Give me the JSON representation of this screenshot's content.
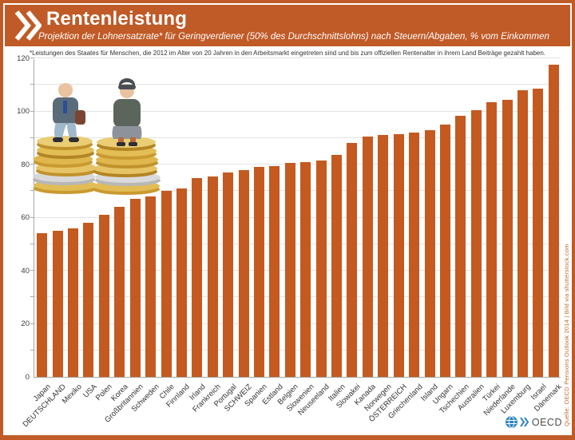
{
  "header": {
    "title": "Rentenleistung",
    "subtitle": "Projektion der Lohnersatzrate* für Geringverdiener (50% des Durchschnittslohns) nach Steuern/Abgaben, % vom Einkommen"
  },
  "footnote": "*Leistungen des Staates für Menschen, die 2012 im Alter von 20 Jahren in den Arbeitsmarkt eingetreten sind und bis zum offiziellen Rentenalter in ihrem Land Beiträge gezahlt haben.",
  "source_note": "Quelle: OECD Pensions Outlook 2014 | Bild via shutterstock.com",
  "branding": {
    "logo_text": "OECD"
  },
  "colors": {
    "accent_orange": "#C05A27",
    "bar_orange": "#C45A20",
    "grid_gray": "#E3E3E3",
    "axis_gray": "#A8A8A8",
    "label_dark": "#333333",
    "source_orange": "#BD6B33",
    "logo_blue": "#2E86C1"
  },
  "illustration_alt": "Zwei Rentner-Figuren sitzen auf Stapeln von Euro-Münzen",
  "chart_data": {
    "type": "bar",
    "title": "Rentenleistung",
    "subtitle": "Projektion der Lohnersatzrate für Geringverdiener (50% des Durchschnittslohns) nach Steuern/Abgaben, % vom Einkommen",
    "xlabel": "",
    "ylabel": "% vom Einkommen",
    "ylim": [
      0,
      120
    ],
    "ytick_label_step": 20,
    "ytick_grid_step": 10,
    "grid": true,
    "legend": false,
    "bar_color": "#C45A20",
    "categories": [
      "Japan",
      "DEUTSCHLAND",
      "Mexiko",
      "USA",
      "Polen",
      "Korea",
      "Großbritannien",
      "Schweden",
      "Chile",
      "Finnland",
      "Irland",
      "Frankreich",
      "Portugal",
      "SCHWEIZ",
      "Spanien",
      "Estland",
      "Belgien",
      "Slowenien",
      "Neuseeland",
      "Italien",
      "Slowakei",
      "Kanada",
      "Norwegen",
      "ÖSTERREICH",
      "Griechenland",
      "Island",
      "Ungarn",
      "Tschechien",
      "Australien",
      "Türkei",
      "Niederlande",
      "Luxemburg",
      "Israel",
      "Dänemark"
    ],
    "values": [
      54,
      55,
      56,
      58,
      61,
      64,
      67,
      68,
      70,
      71,
      75,
      75.5,
      77,
      78,
      79,
      79.5,
      80.5,
      81,
      81.5,
      83.5,
      88,
      90.5,
      91,
      91.5,
      92,
      93,
      95,
      98.5,
      100.5,
      103.5,
      104.5,
      108,
      108.5,
      117.5
    ]
  }
}
